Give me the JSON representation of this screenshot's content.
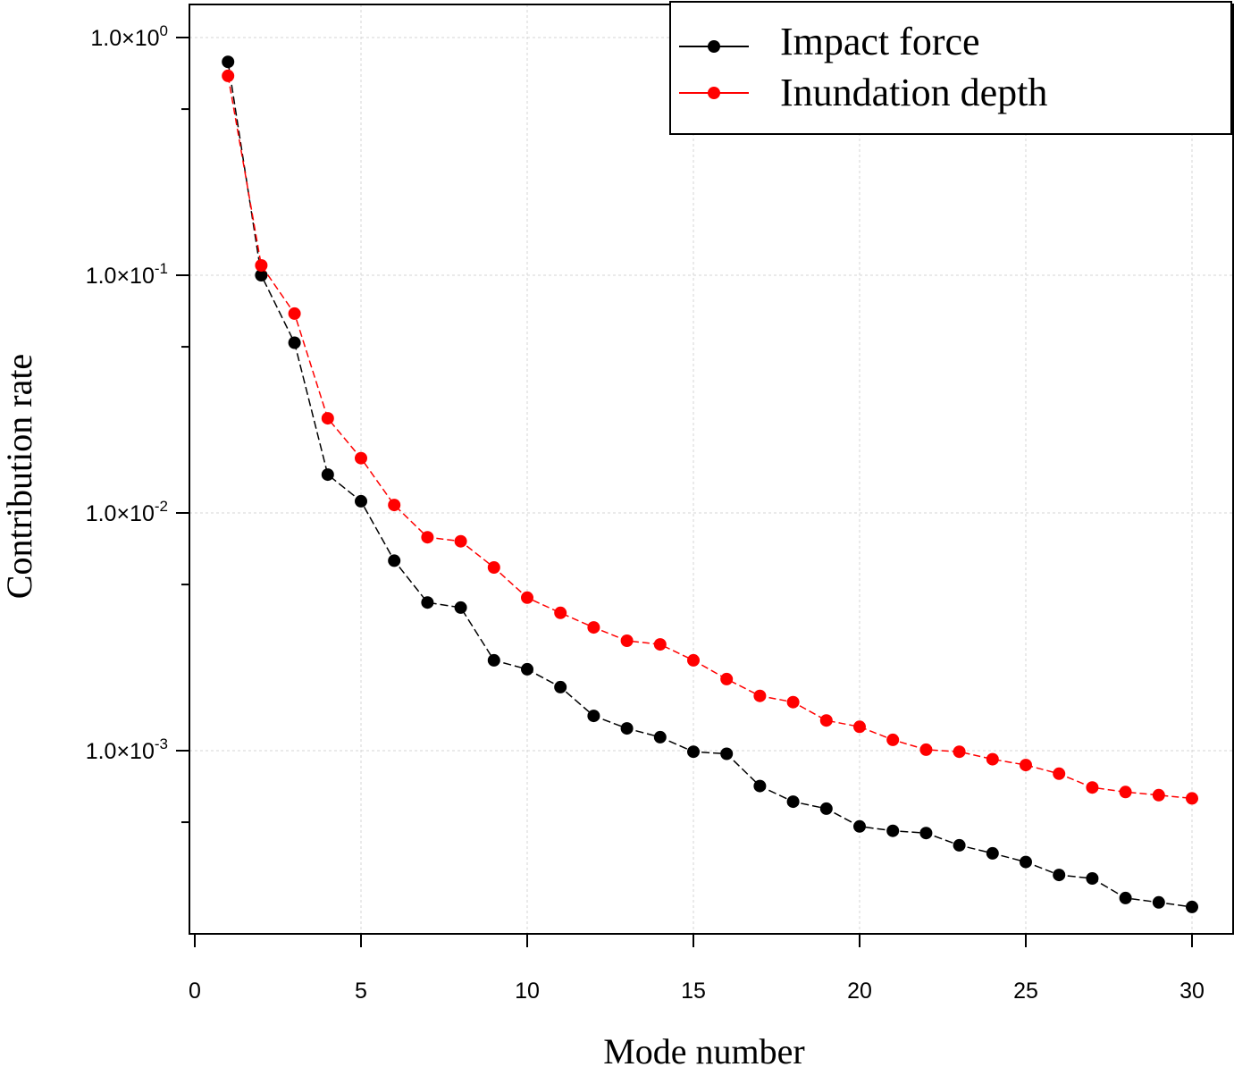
{
  "chart_data": {
    "type": "line",
    "xlabel": "Mode number",
    "ylabel": "Contribution rate",
    "yscale": "log",
    "xlim": [
      0,
      30
    ],
    "ylim": [
      0.00017,
      1.9
    ],
    "xticks": [
      0,
      5,
      10,
      15,
      20,
      25,
      30
    ],
    "yticks": [
      {
        "value": 1.0,
        "mantissa": "1.0×10",
        "exp": "0"
      },
      {
        "value": 0.1,
        "mantissa": "1.0×10",
        "exp": "-1"
      },
      {
        "value": 0.01,
        "mantissa": "1.0×10",
        "exp": "-2"
      },
      {
        "value": 0.001,
        "mantissa": "1.0×10",
        "exp": "-3"
      }
    ],
    "grid": true,
    "legend_position": "top-right",
    "x": [
      1,
      2,
      3,
      4,
      5,
      6,
      7,
      8,
      9,
      10,
      11,
      12,
      13,
      14,
      15,
      16,
      17,
      18,
      19,
      20,
      21,
      22,
      23,
      24,
      25,
      26,
      27,
      28,
      29,
      30
    ],
    "series": [
      {
        "name": "Impact force",
        "color": "#000000",
        "values": [
          0.79,
          0.1,
          0.052,
          0.0145,
          0.0112,
          0.0063,
          0.0042,
          0.004,
          0.0024,
          0.0022,
          0.00185,
          0.0014,
          0.00124,
          0.00114,
          0.00099,
          0.00097,
          0.00071,
          0.00061,
          0.00057,
          0.00048,
          0.00046,
          0.00045,
          0.0004,
          0.00037,
          0.00034,
          0.0003,
          0.00029,
          0.00024,
          0.00023,
          0.00022
        ]
      },
      {
        "name": "Inundation depth",
        "color": "#ff0000",
        "values": [
          0.69,
          0.11,
          0.069,
          0.025,
          0.017,
          0.0108,
          0.0079,
          0.0076,
          0.0059,
          0.0044,
          0.0038,
          0.0033,
          0.0029,
          0.0028,
          0.0024,
          0.002,
          0.0017,
          0.0016,
          0.00134,
          0.00126,
          0.00111,
          0.00101,
          0.00099,
          0.00092,
          0.00087,
          0.0008,
          0.0007,
          0.00067,
          0.00065,
          0.00063
        ]
      }
    ]
  }
}
